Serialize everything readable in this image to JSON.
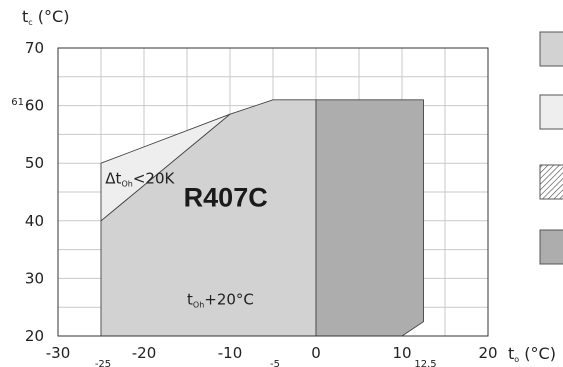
{
  "chart_data": {
    "type": "area",
    "title": "R407C",
    "xlim": [
      -30,
      20
    ],
    "ylim": [
      20,
      70
    ],
    "x_ticks": [
      -30,
      -20,
      -10,
      0,
      10,
      20
    ],
    "x_tick_labels": [
      "-30",
      "-20",
      "-10",
      "0",
      "10",
      "20"
    ],
    "y_ticks": [
      20,
      30,
      40,
      50,
      60,
      70
    ],
    "y_tick_labels": [
      "20",
      "30",
      "40",
      "50",
      "60",
      "70"
    ],
    "extra_x_labels": [
      {
        "value": -25,
        "text": "-25"
      },
      {
        "value": -5,
        "text": "-5"
      },
      {
        "value": 12.5,
        "text": "12.5"
      }
    ],
    "extra_y_label": {
      "value": 61,
      "text": "61"
    },
    "xlabel": {
      "main": "t",
      "sub": "o",
      "unit": "(°C)"
    },
    "ylabel": {
      "main": "t",
      "sub": "c",
      "unit": "(°C)"
    },
    "grid": true,
    "regions": [
      {
        "fill": "#d2d2d2",
        "points": [
          [
            -25,
            20
          ],
          [
            -25,
            40
          ],
          [
            -10,
            58.5
          ],
          [
            -5,
            61
          ],
          [
            0,
            61
          ],
          [
            0,
            20
          ]
        ]
      },
      {
        "fill": "#eeeeee",
        "points": [
          [
            -25,
            40
          ],
          [
            -25,
            50
          ],
          [
            -10,
            58.5
          ]
        ]
      },
      {
        "fill": "#adadad",
        "points": [
          [
            0,
            20
          ],
          [
            0,
            61
          ],
          [
            12.5,
            61
          ],
          [
            12.5,
            22.5
          ],
          [
            10,
            20
          ]
        ]
      }
    ],
    "annotations": [
      {
        "x": -24.5,
        "y": 46.5,
        "main": "Δt",
        "sub": "Oh",
        "rest": "<20K"
      },
      {
        "x": -15,
        "y": 25.5,
        "main": "t",
        "sub": "Oh",
        "rest": "+20°C"
      }
    ],
    "legend": {
      "placement": "right",
      "swatches": [
        {
          "fill": "#d2d2d2"
        },
        {
          "fill": "#eeeeee"
        },
        {
          "fill": "hatch"
        },
        {
          "fill": "#adadad"
        }
      ]
    }
  }
}
